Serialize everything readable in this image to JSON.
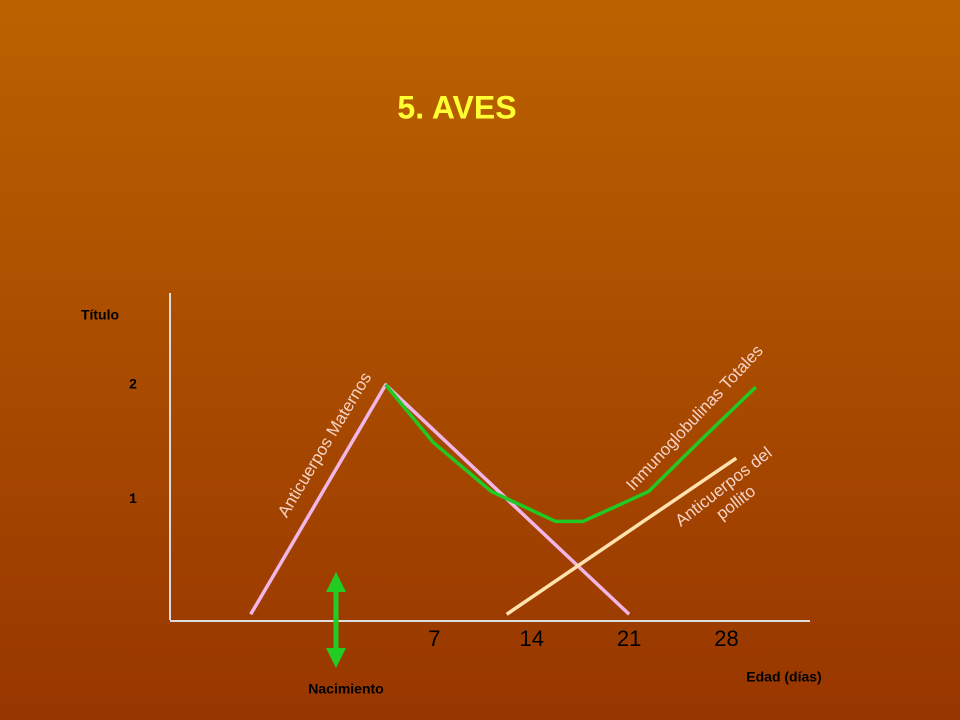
{
  "chart_data": {
    "type": "line",
    "title": "5. AVES",
    "y_label": "Título",
    "x_label": "Edad (días)",
    "annotation": "Nacimiento",
    "xlim": [
      -12,
      34
    ],
    "ylim": [
      -0.05,
      2.8
    ],
    "xticks": [
      7,
      14,
      21,
      28
    ],
    "yticks": [
      1,
      2
    ],
    "series": [
      {
        "name": "Anticuerpos Maternos",
        "color": "#f2b6e6",
        "x": [
          -6.2,
          3.5,
          21
        ],
        "values": [
          0,
          2,
          0
        ]
      },
      {
        "name": "Inmunoglobulinas Totales",
        "color": "#22c922",
        "x": [
          3.5,
          6.9,
          11.1,
          15.7,
          17.7,
          22.4,
          26,
          30.1
        ],
        "values": [
          2,
          1.5,
          1.07,
          0.81,
          0.81,
          1.07,
          1.5,
          1.98
        ]
      },
      {
        "name": "Anticuerpos del pollito",
        "color": "#ffe2ae",
        "x": [
          12.2,
          28.7
        ],
        "values": [
          0,
          1.36
        ]
      }
    ]
  }
}
